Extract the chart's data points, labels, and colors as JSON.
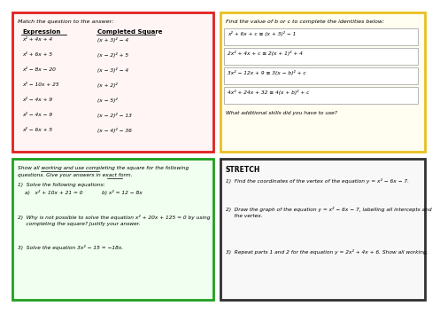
{
  "bg_color": "#ffffff",
  "border_colors": {
    "top_left": "#e02020",
    "top_right": "#e8c020",
    "bottom_left": "#20a020",
    "bottom_right": "#303030"
  },
  "top_left": {
    "title": "Match the question to the answer:",
    "col1_header": "Expression",
    "col2_header": "Completed Square",
    "rows": [
      [
        "x² + 4x + 4",
        "(x + 3)² − 4"
      ],
      [
        "x² + 6x + 5",
        "(x − 2)² + 5"
      ],
      [
        "x² − 8x − 20",
        "(x − 3)² − 4"
      ],
      [
        "x² − 10x + 25",
        "(x + 2)²"
      ],
      [
        "x² − 4x + 9",
        "(x − 5)²"
      ],
      [
        "x² − 4x − 9",
        "(x − 2)² − 13"
      ],
      [
        "x² − 6x + 5",
        "(x − 4)² − 36"
      ]
    ]
  },
  "top_right": {
    "title": "Find the value of b or c to complete the identities below:",
    "equations": [
      "x² + 6x + c ≡ (x + 3)² − 1",
      "2x² + 4x + c ≡ 2(x + 1)² + 4",
      "3x² − 12x + 9 ≡ 3(x − b)² + c",
      "4x² + 24x + 32 ≡ 4(x + b)² + c"
    ],
    "footer": "What additional skills did you have to use?"
  },
  "bottom_left": {
    "title1": "Show all working and use completing the square for the following",
    "title2": "questions. Give your answers in exact form.",
    "q1_title": "1)  Solve the following equations:",
    "q1a": "a)   x² + 10x + 21 = 0",
    "q1b": "b) x² = 12 − 8x",
    "q2_lines": [
      "2)  Why is not possible to solve the equation x² + 20x + 125 = 0 by using",
      "     completing the square? Justify your answer."
    ],
    "q3": "3)  Solve the equation 3x² − 15 = −18x."
  },
  "bottom_right": {
    "title": "STRETCH",
    "q1": "1)  Find the coordinates of the vertex of the equation y = x² − 6x − 7.",
    "q2_lines": [
      "2)  Draw the graph of the equation y = x² − 6x − 7, labelling all intercepts and",
      "     the vertex."
    ],
    "q3": "3)  Repeat parts 1 and 2 for the equation y = 2x² + 4x + 6. Show all working."
  }
}
